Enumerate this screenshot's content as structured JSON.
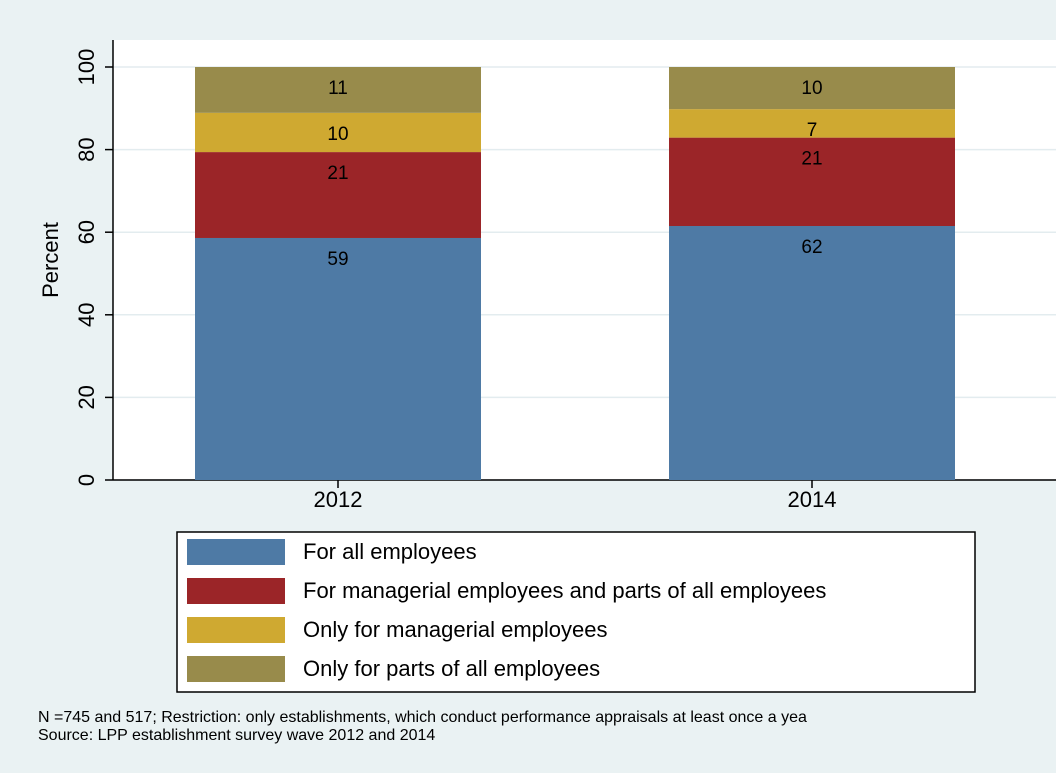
{
  "chart_data": {
    "type": "stacked-bar",
    "y_label": "Percent",
    "categories": [
      "2012",
      "2014"
    ],
    "series": [
      {
        "name": "For all employees",
        "color": "#4e7aa5",
        "values": [
          58.6,
          61.5
        ],
        "value_labels": [
          "59",
          "62"
        ]
      },
      {
        "name": "For managerial employees and parts of all employees",
        "color": "#9b2528",
        "values": [
          20.8,
          21.4
        ],
        "value_labels": [
          "21",
          "21"
        ]
      },
      {
        "name": "Only for managerial employees",
        "color": "#cfa931",
        "values": [
          9.5,
          6.9
        ],
        "value_labels": [
          "10",
          "7"
        ]
      },
      {
        "name": "Only for parts of all employees",
        "color": "#988b4b",
        "values": [
          11.1,
          10.2
        ],
        "value_labels": [
          "11",
          "10"
        ]
      }
    ],
    "ylim": [
      0,
      100
    ],
    "yticks": [
      0,
      20,
      40,
      60,
      80,
      100
    ],
    "grid": true,
    "notes": [
      "N =745 and 517; Restriction: only establishments, which conduct performance appraisals at least once a yea",
      "Source: LPP establishment survey wave 2012 and 2014"
    ]
  }
}
